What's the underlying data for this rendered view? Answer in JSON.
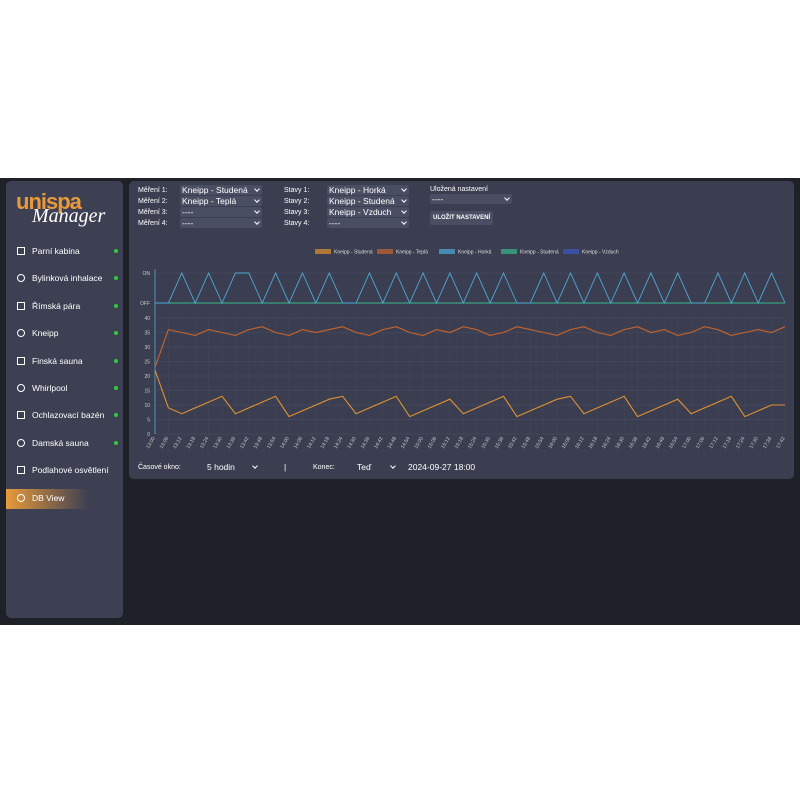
{
  "sidebar": {
    "logo": {
      "brand": "unispa",
      "sub": "Manager"
    },
    "items": [
      {
        "label": "Parní kabina"
      },
      {
        "label": "Bylinková inhalace"
      },
      {
        "label": "Římská pára"
      },
      {
        "label": "Kneipp"
      },
      {
        "label": "Finská sauna"
      },
      {
        "label": "Whirlpool"
      },
      {
        "label": "Ochlazovací bazén"
      },
      {
        "label": "Damská sauna"
      },
      {
        "label": "Podlahové osvětlení"
      },
      {
        "label": "DB View"
      }
    ]
  },
  "filters": {
    "measurements": [
      {
        "label": "Měření 1:",
        "value": "Kneipp - Studená"
      },
      {
        "label": "Měření 2:",
        "value": "Kneipp - Teplá"
      },
      {
        "label": "Měření 3:",
        "value": "----"
      },
      {
        "label": "Měření 4:",
        "value": "----"
      }
    ],
    "states": [
      {
        "label": "Stavy 1:",
        "value": "Kneipp - Horká"
      },
      {
        "label": "Stavy 2:",
        "value": "Kneipp - Studená"
      },
      {
        "label": "Stavy 3:",
        "value": "Kneipp - Vzduch"
      },
      {
        "label": "Stavy 4:",
        "value": "----"
      }
    ],
    "saved": {
      "label": "Uložená nastavení",
      "value": "----"
    },
    "save_button": "ULOŽIT NASTAVENÍ"
  },
  "footer": {
    "window_label": "Časové okno:",
    "window_value": "5 hodin",
    "separator": "|",
    "end_label": "Konec:",
    "end_value": "Teď",
    "end_date": "2024-09-27 18:00"
  },
  "chart_data": {
    "type": "line",
    "grid": true,
    "legend": "top",
    "categories": [
      "13:00",
      "13:06",
      "13:12",
      "13:18",
      "13:24",
      "13:30",
      "13:36",
      "13:42",
      "13:48",
      "13:54",
      "14:00",
      "14:06",
      "14:12",
      "14:18",
      "14:24",
      "14:30",
      "14:36",
      "14:42",
      "14:48",
      "14:54",
      "15:00",
      "15:06",
      "15:12",
      "15:18",
      "15:24",
      "15:30",
      "15:36",
      "15:42",
      "15:48",
      "15:54",
      "16:00",
      "16:06",
      "16:12",
      "16:18",
      "16:24",
      "16:30",
      "16:36",
      "16:42",
      "16:48",
      "16:54",
      "17:00",
      "17:06",
      "17:12",
      "17:18",
      "17:24",
      "17:30",
      "17:36",
      "17:42"
    ],
    "ylim": [
      0,
      40
    ],
    "yticks": [
      0,
      5,
      10,
      15,
      20,
      25,
      30,
      35,
      40
    ],
    "y2lim": [
      0,
      1
    ],
    "y2ticks": [
      {
        "value": 0,
        "label": "OFF"
      },
      {
        "value": 1,
        "label": "ON"
      }
    ],
    "series": [
      {
        "name": "Kneipp - Studená",
        "color": "#e0922f",
        "values": [
          22,
          9,
          7,
          9,
          11,
          13,
          7,
          9,
          11,
          13,
          6,
          8,
          10,
          12,
          13,
          7,
          9,
          11,
          13,
          6,
          8,
          10,
          12,
          7,
          9,
          11,
          13,
          6,
          8,
          10,
          12,
          13,
          7,
          9,
          11,
          13,
          6,
          8,
          10,
          12,
          7,
          9,
          11,
          13,
          6,
          8,
          10,
          10
        ]
      },
      {
        "name": "Kneipp - Teplá",
        "color": "#c8642c",
        "values": [
          23,
          36,
          35,
          34,
          36,
          35,
          34,
          36,
          37,
          35,
          34,
          36,
          35,
          36,
          37,
          35,
          34,
          36,
          37,
          35,
          34,
          36,
          35,
          37,
          36,
          34,
          35,
          37,
          36,
          35,
          34,
          36,
          37,
          35,
          34,
          36,
          37,
          35,
          36,
          34,
          35,
          37,
          36,
          34,
          35,
          36,
          35,
          37
        ]
      },
      {
        "name": "Kneipp - Horká",
        "color": "#4fa9d6",
        "axis": "y2",
        "values": [
          0,
          0,
          1,
          0,
          1,
          0,
          1,
          1,
          0,
          1,
          0,
          1,
          0,
          1,
          0,
          0,
          1,
          0,
          1,
          0,
          1,
          0,
          1,
          0,
          1,
          0,
          1,
          0,
          0,
          1,
          0,
          1,
          0,
          1,
          0,
          1,
          0,
          1,
          0,
          1,
          0,
          0,
          1,
          0,
          1,
          0,
          1,
          0
        ]
      },
      {
        "name": "Kneipp - Studená",
        "color": "#37b88c",
        "axis": "y2",
        "values": [
          0,
          0,
          0,
          0,
          0,
          0,
          0,
          0,
          0,
          0,
          0,
          0,
          0,
          0,
          0,
          0,
          0,
          0,
          0,
          0,
          0,
          0,
          0,
          0,
          0,
          0,
          0,
          0,
          0,
          0,
          0,
          0,
          0,
          0,
          0,
          0,
          0,
          0,
          0,
          0,
          0,
          0,
          0,
          0,
          0,
          0,
          0,
          0
        ]
      },
      {
        "name": "Kneipp - Vzduch",
        "color": "#3a58c4",
        "axis": "y2",
        "values": [
          0,
          0,
          0,
          0,
          0,
          0,
          0,
          0,
          0,
          0,
          0,
          0,
          0,
          0,
          0,
          0,
          0,
          0,
          0,
          0,
          0,
          0,
          0,
          0,
          0,
          0,
          0,
          0,
          0,
          0,
          0,
          0,
          0,
          0,
          0,
          0,
          0,
          0,
          0,
          0,
          0,
          0,
          0,
          0,
          0,
          0,
          0,
          0
        ]
      }
    ]
  }
}
